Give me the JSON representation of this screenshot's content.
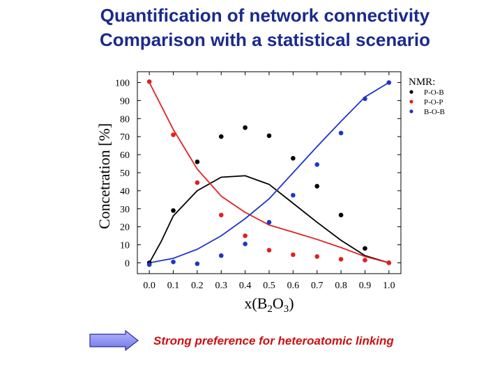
{
  "slide": {
    "title_line1": "Quantification of network connectivity",
    "title_line2": "Comparison with a statistical scenario",
    "footnote": "Strong preference for heteroatomic linking",
    "arrow_icon": "right-arrow-icon"
  },
  "chart_data": {
    "type": "scatter",
    "title": "",
    "xlabel": "x(B2O3)",
    "ylabel": "Concetration [%]",
    "xlim": [
      -0.05,
      1.05
    ],
    "ylim": [
      -6,
      106
    ],
    "x_ticks": [
      "0.0",
      "0.1",
      "0.2",
      "0.3",
      "0.4",
      "0.5",
      "0.6",
      "0.7",
      "0.8",
      "0.9",
      "1.0"
    ],
    "y_ticks": [
      "0",
      "10",
      "20",
      "30",
      "40",
      "50",
      "60",
      "70",
      "80",
      "90",
      "100"
    ],
    "legend_title": "NMR:",
    "legend_position": "top-right",
    "series": [
      {
        "name": "P-O-B",
        "color": "#000000",
        "points": [
          [
            0.0,
            0
          ],
          [
            0.1,
            29
          ],
          [
            0.2,
            56
          ],
          [
            0.3,
            70
          ],
          [
            0.4,
            75
          ],
          [
            0.5,
            70.5
          ],
          [
            0.6,
            58
          ],
          [
            0.7,
            42.5
          ],
          [
            0.8,
            26.5
          ],
          [
            0.9,
            8
          ],
          [
            1.0,
            0
          ]
        ],
        "curve": [
          [
            0.0,
            0
          ],
          [
            0.05,
            12
          ],
          [
            0.1,
            26
          ],
          [
            0.2,
            40
          ],
          [
            0.3,
            47.5
          ],
          [
            0.4,
            48.3
          ],
          [
            0.5,
            43.5
          ],
          [
            0.6,
            33
          ],
          [
            0.7,
            22.5
          ],
          [
            0.8,
            12.5
          ],
          [
            0.9,
            4
          ],
          [
            1.0,
            0
          ]
        ]
      },
      {
        "name": "P-O-P",
        "color": "#e02020",
        "points": [
          [
            0.0,
            100.5
          ],
          [
            0.1,
            71
          ],
          [
            0.2,
            44.5
          ],
          [
            0.3,
            26.5
          ],
          [
            0.4,
            15
          ],
          [
            0.5,
            7
          ],
          [
            0.6,
            4.5
          ],
          [
            0.7,
            3.5
          ],
          [
            0.8,
            2
          ],
          [
            0.9,
            1.5
          ],
          [
            1.0,
            0
          ]
        ],
        "curve": [
          [
            0.0,
            100
          ],
          [
            0.1,
            74
          ],
          [
            0.2,
            52
          ],
          [
            0.3,
            37
          ],
          [
            0.4,
            28
          ],
          [
            0.5,
            21
          ],
          [
            0.6,
            17
          ],
          [
            0.7,
            13
          ],
          [
            0.8,
            8.5
          ],
          [
            0.9,
            3.5
          ],
          [
            1.0,
            0
          ]
        ]
      },
      {
        "name": "B-O-B",
        "color": "#1f35c8",
        "points": [
          [
            0.0,
            -1
          ],
          [
            0.1,
            0.5
          ],
          [
            0.2,
            -0.5
          ],
          [
            0.3,
            4
          ],
          [
            0.4,
            10.5
          ],
          [
            0.5,
            22.5
          ],
          [
            0.6,
            37.5
          ],
          [
            0.7,
            54.5
          ],
          [
            0.8,
            72
          ],
          [
            0.9,
            91
          ],
          [
            1.0,
            100
          ]
        ],
        "curve": [
          [
            0.0,
            0
          ],
          [
            0.1,
            2.5
          ],
          [
            0.2,
            7.5
          ],
          [
            0.3,
            15
          ],
          [
            0.4,
            24.5
          ],
          [
            0.5,
            35.5
          ],
          [
            0.6,
            50
          ],
          [
            0.7,
            64.5
          ],
          [
            0.8,
            78.5
          ],
          [
            0.9,
            92
          ],
          [
            1.0,
            100
          ]
        ]
      }
    ]
  }
}
